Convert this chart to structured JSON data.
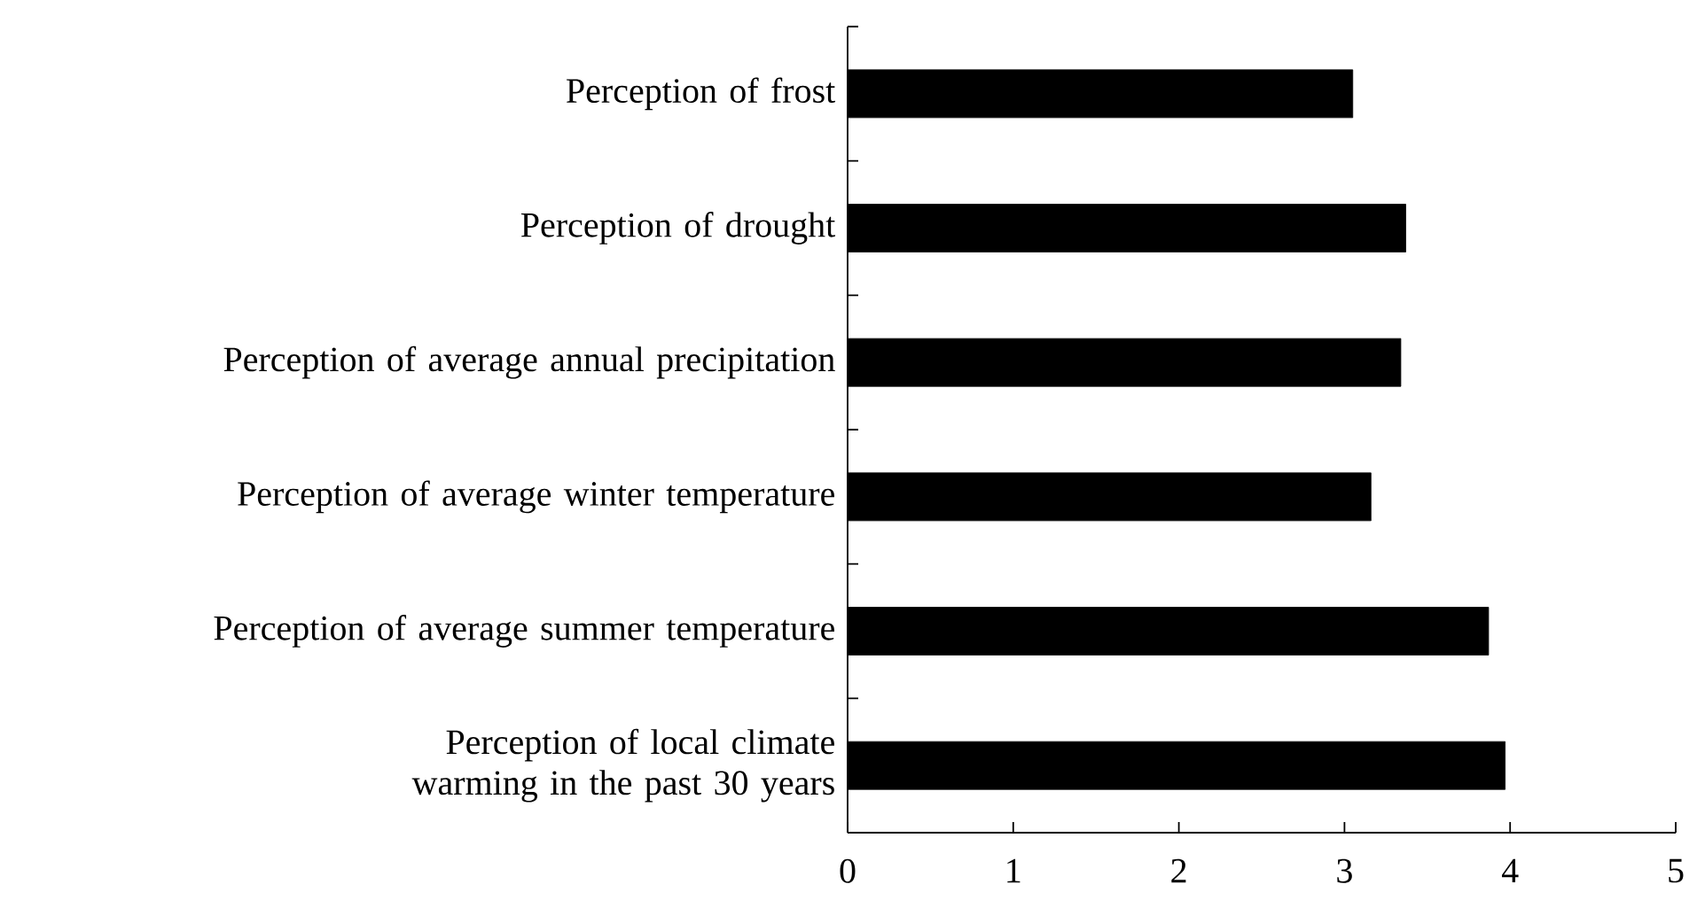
{
  "chart_data": {
    "type": "bar",
    "orientation": "horizontal",
    "categories": [
      "Perception of frost",
      "Perception of drought",
      "Perception of average annual precipitation",
      "Perception of average winter temperature",
      "Perception of average summer temperature",
      "Perception of local climate warming in the past 30 years"
    ],
    "values": [
      3.05,
      3.37,
      3.34,
      3.16,
      3.87,
      3.97
    ],
    "color": "#000000",
    "xlim": [
      0,
      5
    ],
    "xticks": [
      0,
      1,
      2,
      3,
      4,
      5
    ]
  }
}
